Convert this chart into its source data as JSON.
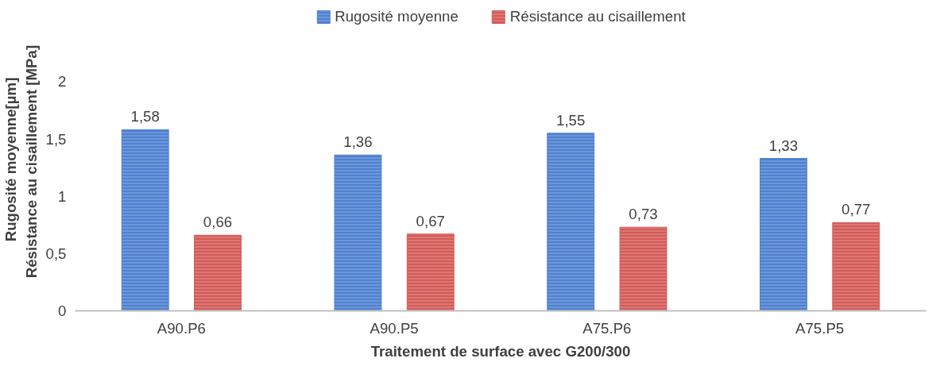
{
  "chart_data": {
    "type": "bar",
    "xlabel": "Traitement de surface avec G200/300",
    "ylabel": "Rugosité moyenne[µm]\nRésistance au cisaillement  [MPa]",
    "categories": [
      "A90.P6",
      "A90.P5",
      "A75.P6",
      "A75.P5"
    ],
    "series": [
      {
        "name": "Rugosité moyenne",
        "color": "#4f81d0",
        "values": [
          1.58,
          1.36,
          1.55,
          1.33
        ],
        "value_labels": [
          "1,58",
          "1,36",
          "1,55",
          "1,33"
        ]
      },
      {
        "name": "Résistance au cisaillement",
        "color": "#d45b58",
        "values": [
          0.66,
          0.67,
          0.73,
          0.77
        ],
        "value_labels": [
          "0,66",
          "0,67",
          "0,73",
          "0,77"
        ]
      }
    ],
    "ylim": [
      0,
      2
    ],
    "yticks": [
      0,
      {
        "value": 0.5,
        "label": "0,5"
      },
      1,
      {
        "value": 1.5,
        "label": "1,5"
      },
      2
    ],
    "grid": false,
    "legend": "top"
  }
}
